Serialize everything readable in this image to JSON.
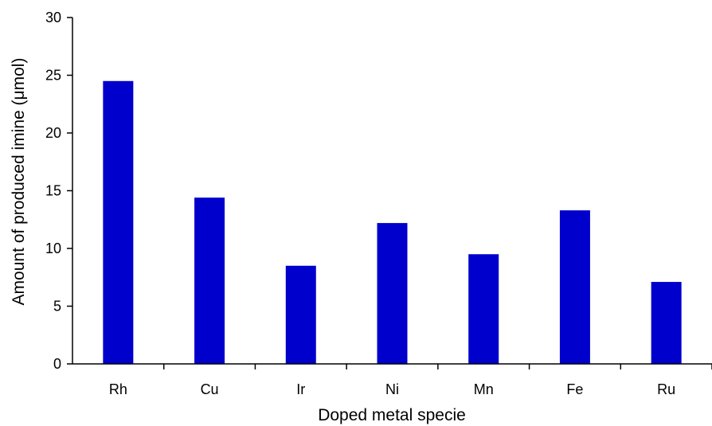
{
  "chart_data": {
    "type": "bar",
    "categories": [
      "Rh",
      "Cu",
      "Ir",
      "Ni",
      "Mn",
      "Fe",
      "Ru"
    ],
    "values": [
      24.5,
      14.4,
      8.5,
      12.2,
      9.5,
      13.3,
      7.1
    ],
    "xlabel": "Doped metal specie",
    "ylabel": "Amount of produced imine (μmol)",
    "ylim": [
      0,
      30
    ],
    "yticks": [
      0,
      5,
      10,
      15,
      20,
      25,
      30
    ],
    "grid": false,
    "legend": "none",
    "bar_color": "#0000cc",
    "axis_color": "#000000"
  }
}
